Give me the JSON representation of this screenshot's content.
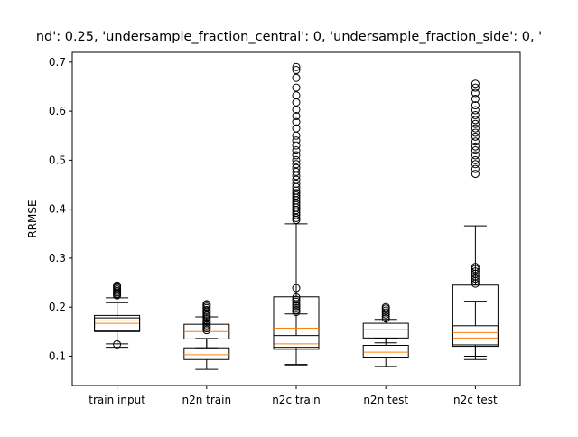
{
  "chart_data": {
    "type": "box",
    "title": "nd': 0.25, 'undersample_fraction_central': 0, 'undersample_fraction_side': 0, '",
    "ylabel": "RRMSE",
    "xlabel": "",
    "ylim": [
      0.04,
      0.72
    ],
    "yticks": [
      0.1,
      0.2,
      0.3,
      0.4,
      0.5,
      0.6,
      0.7
    ],
    "ytick_labels": [
      "0.1",
      "0.2",
      "0.3",
      "0.4",
      "0.5",
      "0.6",
      "0.7"
    ],
    "categories": [
      "train input",
      "n2n train",
      "n2c train",
      "n2n test",
      "n2c test"
    ],
    "colors": {
      "box": "#000000",
      "median": "#ff7f0e",
      "grid": false
    },
    "boxes": [
      {
        "category": "train input",
        "groups": [
          {
            "whisker_low": 0.118,
            "q1": 0.15,
            "median": 0.167,
            "q3": 0.183,
            "whisker_high": 0.219,
            "fliers": [
              0.124,
              0.224,
              0.227,
              0.23,
              0.233,
              0.236,
              0.239,
              0.242,
              0.244
            ]
          },
          {
            "whisker_low": 0.125,
            "q1": 0.152,
            "median": 0.172,
            "q3": 0.178,
            "whisker_high": 0.209,
            "fliers": []
          }
        ]
      },
      {
        "category": "n2n train",
        "groups": [
          {
            "whisker_low": 0.073,
            "q1": 0.093,
            "median": 0.103,
            "q3": 0.117,
            "whisker_high": 0.136,
            "fliers": []
          },
          {
            "whisker_low": 0.117,
            "q1": 0.135,
            "median": 0.15,
            "q3": 0.165,
            "whisker_high": 0.18,
            "fliers": [
              0.153,
              0.157,
              0.16,
              0.163,
              0.167,
              0.17,
              0.173,
              0.177,
              0.18,
              0.183,
              0.187,
              0.19,
              0.194,
              0.198,
              0.201,
              0.204,
              0.206
            ]
          }
        ]
      },
      {
        "category": "n2c train",
        "groups": [
          {
            "whisker_low": 0.082,
            "q1": 0.114,
            "median": 0.125,
            "q3": 0.142,
            "whisker_high": 0.186,
            "fliers": [
              0.19,
              0.194,
              0.198,
              0.202,
              0.206,
              0.211,
              0.215,
              0.22,
              0.239
            ]
          },
          {
            "whisker_low": 0.083,
            "q1": 0.118,
            "median": 0.157,
            "q3": 0.221,
            "whisker_high": 0.37,
            "fliers": [
              0.378,
              0.382,
              0.388,
              0.393,
              0.398,
              0.403,
              0.408,
              0.413,
              0.418,
              0.423,
              0.428,
              0.433,
              0.438,
              0.445,
              0.452,
              0.46,
              0.468,
              0.476,
              0.484,
              0.492,
              0.5,
              0.51,
              0.52,
              0.53,
              0.54,
              0.55,
              0.565,
              0.578,
              0.59,
              0.603,
              0.618,
              0.632,
              0.648,
              0.668,
              0.684,
              0.69
            ]
          }
        ]
      },
      {
        "category": "n2n test",
        "groups": [
          {
            "whisker_low": 0.079,
            "q1": 0.098,
            "median": 0.108,
            "q3": 0.122,
            "whisker_high": 0.136,
            "fliers": []
          },
          {
            "whisker_low": 0.127,
            "q1": 0.137,
            "median": 0.154,
            "q3": 0.167,
            "whisker_high": 0.175,
            "fliers": [
              0.177,
              0.181,
              0.185,
              0.189,
              0.193,
              0.197,
              0.2
            ]
          }
        ]
      },
      {
        "category": "n2c test",
        "groups": [
          {
            "whisker_low": 0.093,
            "q1": 0.12,
            "median": 0.137,
            "q3": 0.162,
            "whisker_high": 0.212,
            "fliers": []
          },
          {
            "whisker_low": 0.1,
            "q1": 0.123,
            "median": 0.148,
            "q3": 0.245,
            "whisker_high": 0.366,
            "fliers": [
              0.248,
              0.253,
              0.258,
              0.263,
              0.268,
              0.273,
              0.278,
              0.282,
              0.472,
              0.482,
              0.492,
              0.5,
              0.51,
              0.52,
              0.528,
              0.538,
              0.548,
              0.556,
              0.565,
              0.574,
              0.582,
              0.592,
              0.602,
              0.612,
              0.625,
              0.637,
              0.648,
              0.656
            ]
          }
        ]
      }
    ]
  }
}
